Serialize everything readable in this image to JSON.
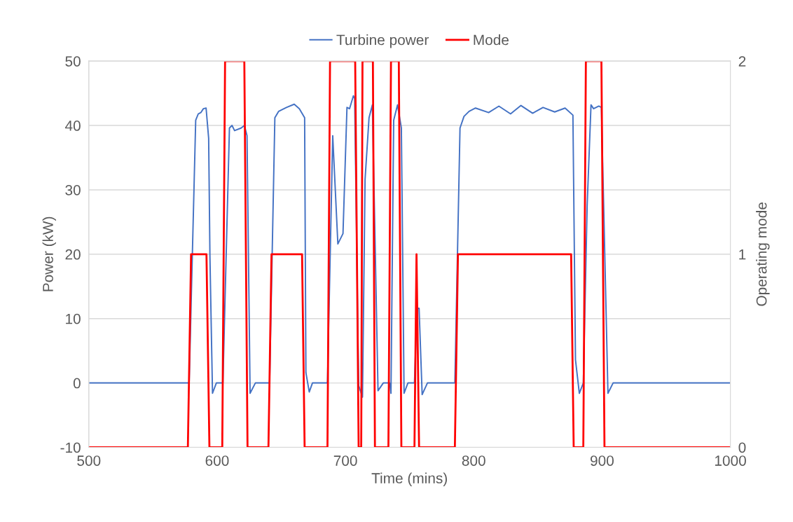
{
  "chart_data": {
    "type": "line",
    "xlabel": "Time (mins)",
    "ylabel": "Power (kW)",
    "y2label": "Operating mode",
    "xlim": [
      500,
      1000
    ],
    "xticks": [
      500,
      600,
      700,
      800,
      900,
      1000
    ],
    "ylim": [
      -10,
      50
    ],
    "yticks": [
      -10,
      0,
      10,
      20,
      30,
      40,
      50
    ],
    "y2lim": [
      0,
      2
    ],
    "y2ticks": [
      0,
      1,
      2
    ],
    "grid": "y",
    "legend": "top",
    "marker": "none",
    "line_style": "solid",
    "series": [
      {
        "name": "Turbine power",
        "color": "#4472c4",
        "axis": "y",
        "x": [
          500,
          578.2,
          583.3,
          585.3,
          587.3,
          589.3,
          591.4,
          593.4,
          594.4,
          596.4,
          599.4,
          604.5,
          609.6,
          611.6,
          613.6,
          618.7,
          621.3,
          623.3,
          625.7,
          629.8,
          640.9,
          645,
          648,
          654,
          660.1,
          664.1,
          668.2,
          669.2,
          671.8,
          674.3,
          686,
          690.1,
          694.1,
          698.1,
          701.2,
          703.2,
          706.2,
          707.2,
          710.3,
          713.3,
          715.3,
          718.4,
          721,
          725.4,
          729.5,
          734.5,
          735.5,
          737.6,
          740.6,
          743.6,
          745.7,
          748.7,
          753.8,
          755.8,
          757.4,
          759.8,
          763.9,
          785.3,
          789.3,
          792.4,
          796.4,
          801.4,
          811.6,
          819.6,
          828.7,
          836.8,
          845.9,
          854,
          863.1,
          871.2,
          877.3,
          879.3,
          882.3,
          885.4,
          888.4,
          891.4,
          893.4,
          897.5,
          899.5,
          904.6,
          908.6,
          1000
        ],
        "values": [
          0,
          0,
          40.8,
          41.8,
          42,
          42.6,
          42.7,
          38,
          19.6,
          -1.6,
          0,
          0,
          39.6,
          40,
          39.2,
          39.6,
          40,
          38.4,
          -1.6,
          0,
          0,
          41.2,
          42.2,
          42.8,
          43.3,
          42.6,
          41.2,
          1.6,
          -1.4,
          0,
          0,
          38.4,
          21.6,
          23.2,
          42.8,
          42.6,
          44.6,
          44.2,
          -0.4,
          -2.2,
          31.6,
          41.2,
          43.2,
          -1.2,
          0,
          0,
          -1.6,
          40.8,
          43.2,
          39.6,
          -1.6,
          0,
          0,
          11.6,
          11.6,
          -1.8,
          0,
          0,
          39.6,
          41.4,
          42.2,
          42.7,
          42,
          43,
          41.8,
          43.1,
          41.9,
          42.8,
          42.1,
          42.7,
          41.6,
          3.6,
          -1.6,
          0,
          27.6,
          43.2,
          42.6,
          43,
          42.8,
          -1.6,
          0,
          0
        ]
      },
      {
        "name": "Mode",
        "color": "#ff0000",
        "axis": "y2",
        "x": [
          500,
          577.2,
          579.7,
          591.7,
          594,
          604,
          606.2,
          621.2,
          623.7,
          640,
          642.4,
          666.2,
          668.2,
          686,
          688,
          707.6,
          710.3,
          712.3,
          713.3,
          721.4,
          723,
          733.5,
          735.5,
          741.6,
          743.6,
          753.8,
          755.4,
          757.4,
          785.3,
          787.7,
          875.9,
          877.9,
          885.4,
          887.4,
          899.5,
          901.9,
          1000
        ],
        "values": [
          0,
          0,
          1,
          1,
          0,
          0,
          2,
          2,
          0,
          0,
          1,
          1,
          0,
          0,
          2,
          2,
          0,
          0,
          2,
          2,
          0,
          0,
          2,
          2,
          0,
          0,
          1,
          0,
          0,
          1,
          1,
          0,
          0,
          2,
          2,
          0,
          0
        ]
      }
    ]
  }
}
